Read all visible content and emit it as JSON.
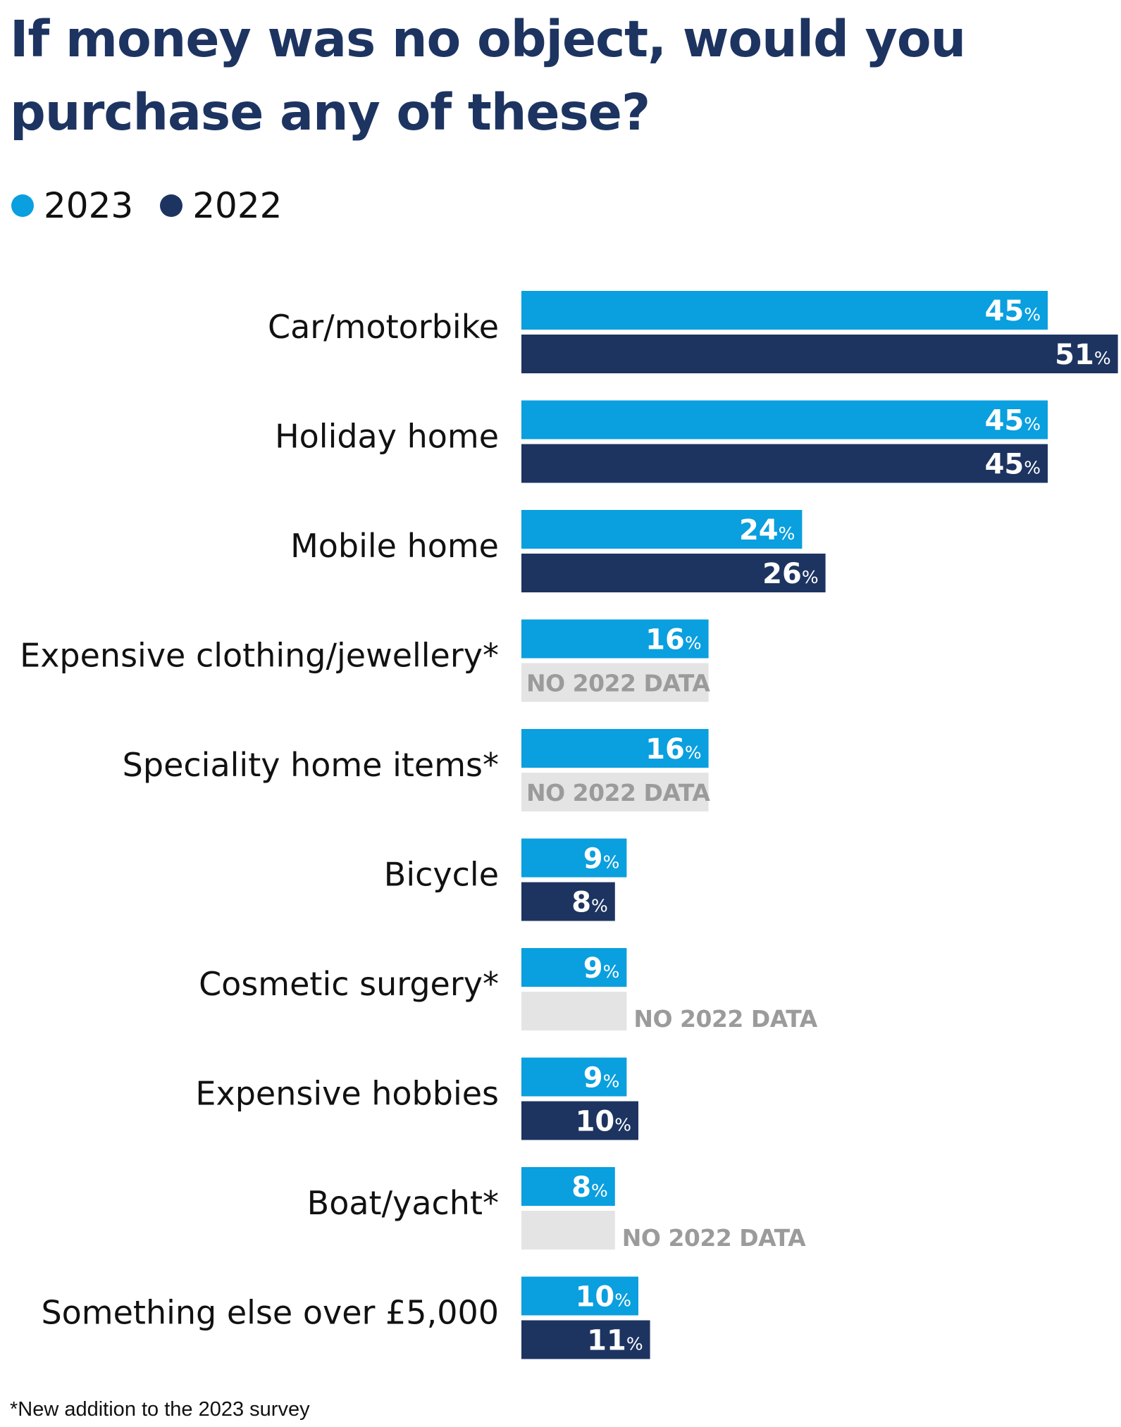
{
  "title": "If money was no object, would you purchase any of these?",
  "footnote": "*New addition to the 2023 survey",
  "colors": {
    "y2023": "#0a9fde",
    "y2022": "#1d3461",
    "nodata_bg": "#e4e4e4",
    "nodata_text": "#9b9b9b"
  },
  "chart_data": {
    "type": "bar",
    "orientation": "horizontal",
    "legend_position": "top-left",
    "grid": false,
    "xlim": [
      0,
      51
    ],
    "unit": "%",
    "no_data_label": "NO 2022 DATA",
    "categories": [
      "Car/motorbike",
      "Holiday home",
      "Mobile home",
      "Expensive clothing/jewellery*",
      "Speciality home items*",
      "Bicycle",
      "Cosmetic surgery*",
      "Expensive hobbies",
      "Boat/yacht*",
      "Something else over £5,000"
    ],
    "series": [
      {
        "name": "2023",
        "values": [
          45,
          45,
          24,
          16,
          16,
          9,
          9,
          9,
          8,
          10
        ]
      },
      {
        "name": "2022",
        "values": [
          51,
          45,
          26,
          null,
          null,
          8,
          null,
          10,
          null,
          11
        ]
      }
    ]
  }
}
